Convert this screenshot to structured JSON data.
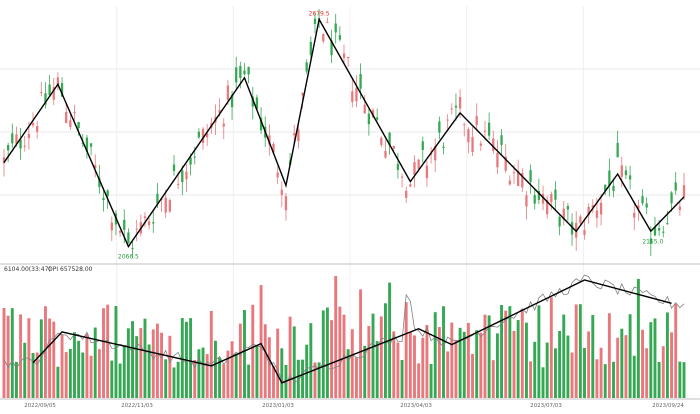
{
  "chart_data": [
    {
      "type": "candlestick",
      "annotations": {
        "high": {
          "label": "2679.5",
          "value": 2679.5
        },
        "low1": {
          "label": "2066.5",
          "value": 2066.5
        },
        "low2": {
          "label": "2155.0",
          "value": 2155.0
        }
      },
      "ylim": [
        2040,
        2700
      ],
      "grid": true,
      "colors": {
        "up": "#e8787c",
        "down": "#34a853",
        "line": "#000000",
        "annotation_high": "#e03030",
        "annotation_low": "#2a9a40"
      },
      "zigzag": [
        {
          "x": 0,
          "y": 2290
        },
        {
          "x": 13,
          "y": 2495
        },
        {
          "x": 30,
          "y": 2070
        },
        {
          "x": 58,
          "y": 2512
        },
        {
          "x": 68,
          "y": 2230
        },
        {
          "x": 76,
          "y": 2665
        },
        {
          "x": 98,
          "y": 2240
        },
        {
          "x": 110,
          "y": 2420
        },
        {
          "x": 138,
          "y": 2110
        },
        {
          "x": 148,
          "y": 2260
        },
        {
          "x": 156,
          "y": 2110
        },
        {
          "x": 164,
          "y": 2200
        }
      ],
      "n_candles": 165
    },
    {
      "type": "bar",
      "header": {
        "volume_label": "6104.00(33:47)",
        "oi_label": "OPI 657528.00"
      },
      "x_tick_labels": [
        "2022/09/05",
        "2022/11/03",
        "2023/01/03",
        "2023/04/03",
        "2023/07/03",
        "2023/09/24"
      ],
      "colors": {
        "up": "#e8787c",
        "down": "#34a853",
        "oi_line": "#808080",
        "zigzag": "#000000"
      },
      "oi_zigzag": [
        {
          "x": 7,
          "y": 0.22
        },
        {
          "x": 14,
          "y": 0.51
        },
        {
          "x": 50,
          "y": 0.19
        },
        {
          "x": 62,
          "y": 0.4
        },
        {
          "x": 67,
          "y": 0.03
        },
        {
          "x": 100,
          "y": 0.54
        },
        {
          "x": 108,
          "y": 0.39
        },
        {
          "x": 140,
          "y": 1.0
        },
        {
          "x": 161,
          "y": 0.78
        }
      ]
    }
  ]
}
